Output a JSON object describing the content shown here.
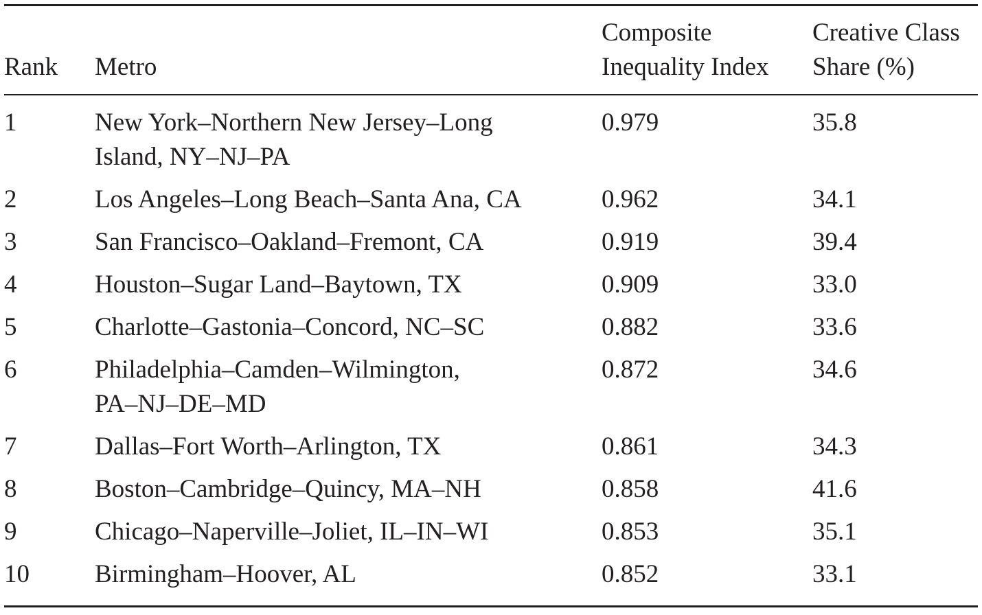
{
  "table": {
    "headers": {
      "rank": "Rank",
      "metro": "Metro",
      "cii_line1": "Composite",
      "cii_line2": "Inequality Index",
      "ccs_line1": "Creative Class",
      "ccs_line2": "Share (%)"
    },
    "rows": [
      {
        "rank": "1",
        "metro_line1": "New York–Northern New Jersey–Long",
        "metro_line2": "Island, NY–NJ–PA",
        "cii": "0.979",
        "ccs": "35.8"
      },
      {
        "rank": "2",
        "metro_line1": "Los Angeles–Long Beach–Santa Ana, CA",
        "metro_line2": "",
        "cii": "0.962",
        "ccs": "34.1"
      },
      {
        "rank": "3",
        "metro_line1": "San Francisco–Oakland–Fremont, CA",
        "metro_line2": "",
        "cii": "0.919",
        "ccs": "39.4"
      },
      {
        "rank": "4",
        "metro_line1": "Houston–Sugar Land–Baytown, TX",
        "metro_line2": "",
        "cii": "0.909",
        "ccs": "33.0"
      },
      {
        "rank": "5",
        "metro_line1": "Charlotte–Gastonia–Concord, NC–SC",
        "metro_line2": "",
        "cii": "0.882",
        "ccs": "33.6"
      },
      {
        "rank": "6",
        "metro_line1": "Philadelphia–Camden–Wilmington,",
        "metro_line2": "PA–NJ–DE–MD",
        "cii": "0.872",
        "ccs": "34.6"
      },
      {
        "rank": "7",
        "metro_line1": "Dallas–Fort Worth–Arlington, TX",
        "metro_line2": "",
        "cii": "0.861",
        "ccs": "34.3"
      },
      {
        "rank": "8",
        "metro_line1": "Boston–Cambridge–Quincy, MA–NH",
        "metro_line2": "",
        "cii": "0.858",
        "ccs": "41.6"
      },
      {
        "rank": "9",
        "metro_line1": "Chicago–Naperville–Joliet, IL–IN–WI",
        "metro_line2": "",
        "cii": "0.853",
        "ccs": "35.1"
      },
      {
        "rank": "10",
        "metro_line1": "Birmingham–Hoover, AL",
        "metro_line2": "",
        "cii": "0.852",
        "ccs": "33.1"
      }
    ]
  }
}
